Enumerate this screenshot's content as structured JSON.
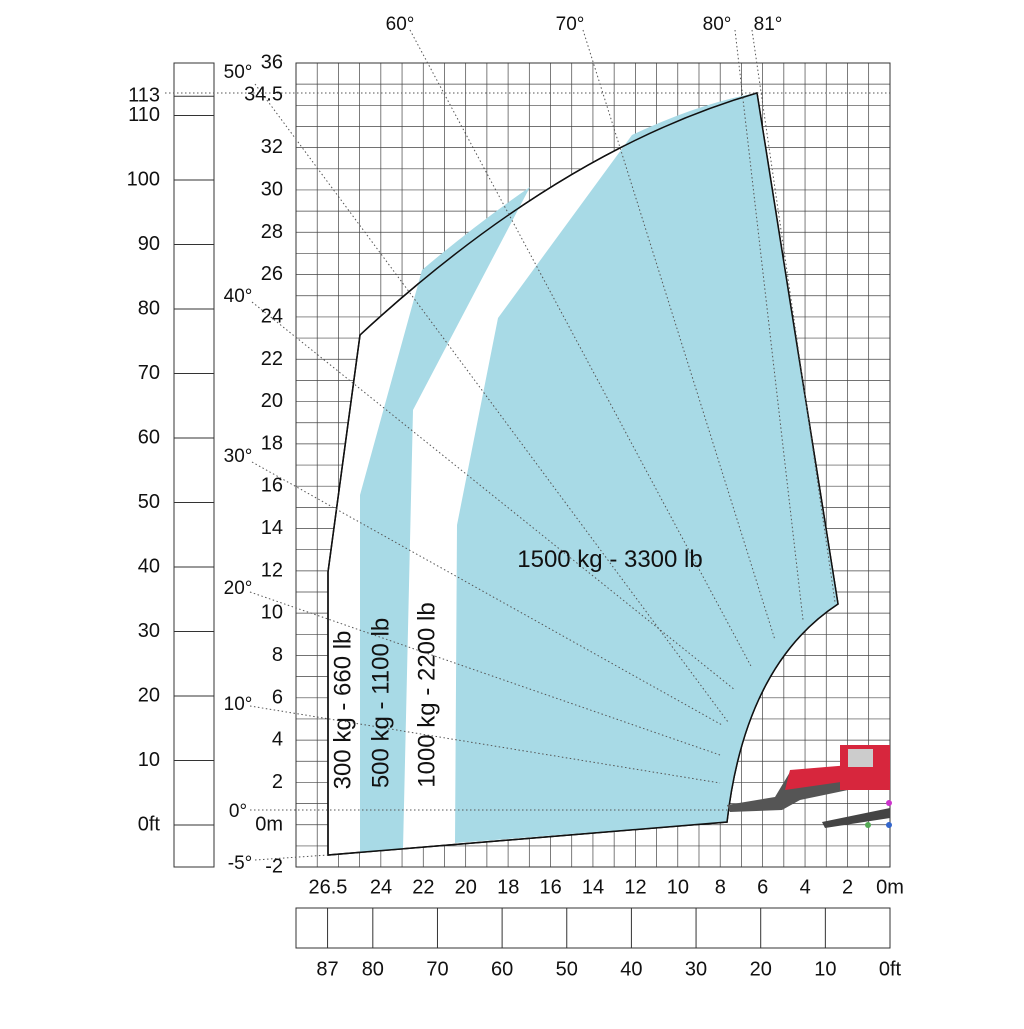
{
  "axes": {
    "height_m": {
      "ticks": [
        36,
        {
          "value": 34.5,
          "label": "34.5"
        },
        32,
        30,
        28,
        26,
        24,
        22,
        20,
        18,
        16,
        14,
        12,
        10,
        8,
        6,
        4,
        2,
        {
          "value": 0,
          "label": "0m"
        },
        -2
      ]
    },
    "height_ft": {
      "ticks": [
        {
          "value": 0,
          "label": "0ft"
        },
        10,
        20,
        30,
        40,
        50,
        60,
        70,
        80,
        90,
        100,
        110,
        113
      ]
    },
    "reach_m": {
      "ticks": [
        {
          "value": 26.5,
          "label": "26.5"
        },
        24,
        22,
        20,
        18,
        16,
        14,
        12,
        10,
        8,
        6,
        4,
        2,
        {
          "value": 0,
          "label": "0m"
        }
      ]
    },
    "reach_ft": {
      "ticks": [
        87,
        80,
        70,
        60,
        50,
        40,
        30,
        20,
        10,
        {
          "value": 0,
          "label": "0ft"
        }
      ]
    }
  },
  "angles": {
    "left": [
      "50°",
      "40°",
      "30°",
      "20°",
      "10°",
      "0°",
      "-5°"
    ],
    "top": [
      "60°",
      "70°",
      "80°",
      "81°"
    ]
  },
  "zones": [
    "300 kg - 660 lb",
    "500 kg - 1100 lb",
    "1000 kg - 2200 lb",
    "1500 kg - 3300 lb"
  ]
}
